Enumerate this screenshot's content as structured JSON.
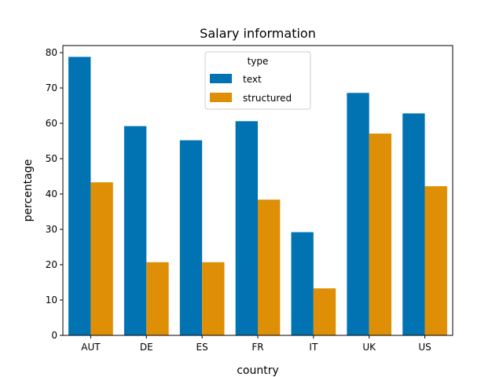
{
  "chart_data": {
    "type": "bar",
    "title": "Salary information",
    "xlabel": "country",
    "ylabel": "percentage",
    "categories": [
      "AUT",
      "DE",
      "ES",
      "FR",
      "IT",
      "UK",
      "US"
    ],
    "series": [
      {
        "name": "text",
        "color": "#0173b2",
        "values": [
          78.8,
          59.2,
          55.2,
          60.6,
          29.2,
          68.6,
          62.8
        ]
      },
      {
        "name": "structured",
        "color": "#de8f05",
        "values": [
          43.3,
          20.7,
          20.7,
          38.4,
          13.3,
          57.1,
          42.2
        ]
      }
    ],
    "ylim": [
      0,
      82
    ],
    "yticks": [
      0,
      10,
      20,
      30,
      40,
      50,
      60,
      70,
      80
    ],
    "legend": {
      "title": "type",
      "position": "top-center"
    },
    "grid": false
  }
}
